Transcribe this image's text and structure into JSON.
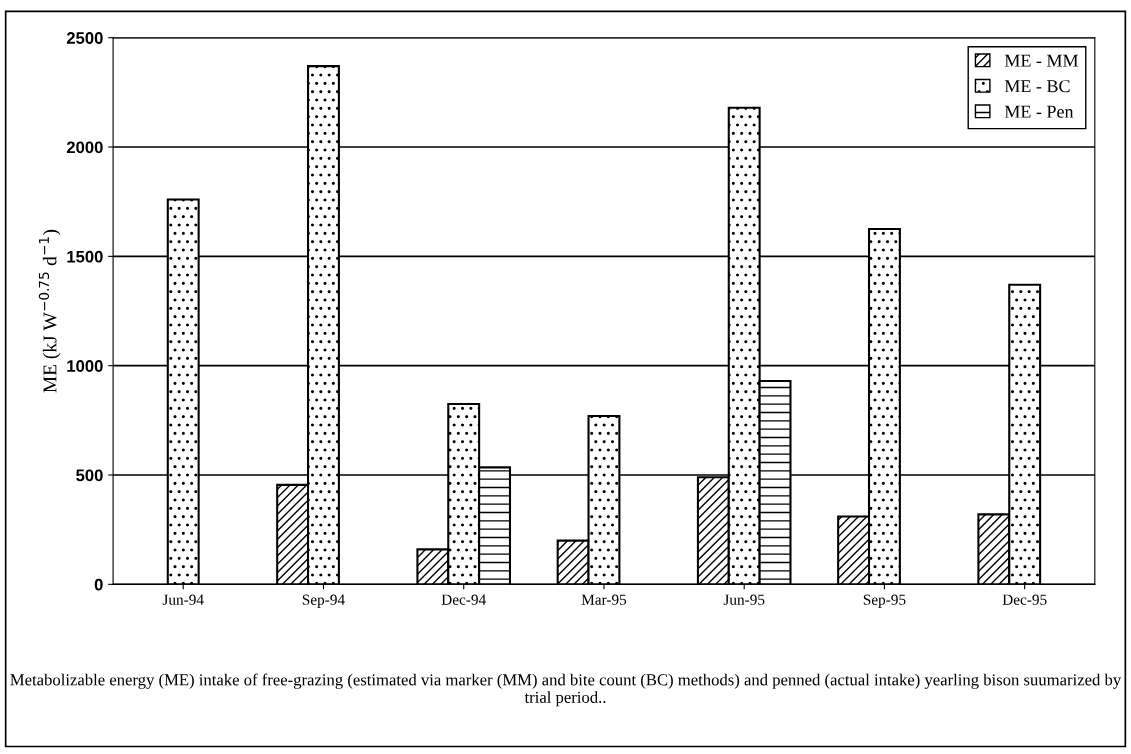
{
  "chart_data": {
    "type": "bar",
    "ylabel": "ME (kJ W$^{−0.75}$ d$^{−1}$)",
    "categories": [
      "Jun-94",
      "Sep-94",
      "Dec-94",
      "Mar-95",
      "Jun-95",
      "Sep-95",
      "Dec-95"
    ],
    "series": [
      {
        "name": "ME - MM",
        "color": "#000000",
        "values": [
          null,
          455,
          160,
          200,
          490,
          310,
          320
        ]
      },
      {
        "name": "ME - BC",
        "color": "#000000",
        "values": [
          1760,
          2370,
          825,
          770,
          2180,
          1625,
          1370
        ]
      },
      {
        "name": "ME - Pen",
        "color": "#000000",
        "values": [
          null,
          null,
          535,
          null,
          930,
          null,
          null
        ]
      }
    ],
    "ylim": [
      0,
      2500
    ],
    "yticks": [
      0,
      500,
      1000,
      1500,
      2000,
      2500
    ],
    "grid": "y",
    "legend": "top right",
    "annotations": [
      "Metabolizable energy (ME) intake of free-grazing (estimated via marker (MM) and bite count (BC) methods) and penned (actual intake) yearling bison suumarized by trial period.."
    ]
  }
}
